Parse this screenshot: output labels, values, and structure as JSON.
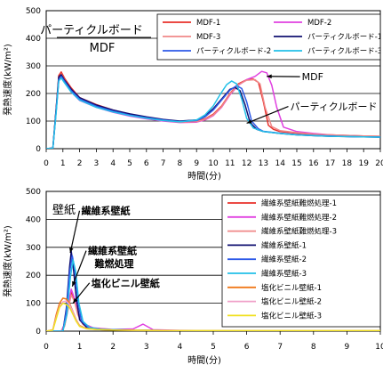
{
  "chart_data": [
    {
      "type": "line",
      "title": "パーティクルボード",
      "subtitle": "MDF",
      "xlabel": "時間(分)",
      "ylabel": "発熱速度(kW/m²)",
      "xlim": [
        0,
        20
      ],
      "ylim": [
        0,
        500
      ],
      "xticks": [
        "0",
        "1",
        "2",
        "3",
        "4",
        "5",
        "6",
        "7",
        "8",
        "9",
        "10",
        "11",
        "12",
        "13",
        "14",
        "15",
        "16",
        "17",
        "18",
        "19",
        "20"
      ],
      "yticks": [
        "0",
        "100",
        "200",
        "300",
        "400",
        "500"
      ],
      "grid": "horizontal",
      "legend_position": "top-right",
      "annotations": [
        {
          "text": "MDF",
          "x": 15.3,
          "y": 248,
          "arrow_to": [
            13.2,
            262
          ]
        },
        {
          "text": "パーティクルボード",
          "x": 14.6,
          "y": 140,
          "arrow_to": [
            12.0,
            92
          ]
        }
      ],
      "series": [
        {
          "name": "MDF-1",
          "color": "#e8302a",
          "x": [
            0,
            0.4,
            0.6,
            0.75,
            0.9,
            1.1,
            1.5,
            2,
            3,
            4,
            5,
            6,
            7,
            8,
            9,
            9.5,
            10,
            10.5,
            11,
            11.5,
            12,
            12.4,
            12.7,
            13,
            13.3,
            13.6,
            14,
            15,
            16,
            17,
            18,
            19,
            20
          ],
          "y": [
            0,
            2,
            150,
            265,
            278,
            255,
            220,
            185,
            160,
            140,
            125,
            113,
            103,
            98,
            100,
            108,
            125,
            155,
            200,
            235,
            250,
            252,
            240,
            170,
            85,
            70,
            62,
            56,
            52,
            50,
            48,
            46,
            45
          ]
        },
        {
          "name": "MDF-2",
          "color": "#e040e0",
          "x": [
            0,
            0.4,
            0.6,
            0.75,
            0.9,
            1.1,
            1.5,
            2,
            3,
            4,
            5,
            6,
            7,
            8,
            9,
            9.5,
            10,
            10.5,
            11,
            11.5,
            12,
            12.5,
            12.9,
            13.2,
            13.5,
            13.8,
            14.2,
            15,
            16,
            17,
            18,
            19,
            20
          ],
          "y": [
            0,
            2,
            140,
            245,
            262,
            242,
            205,
            175,
            150,
            132,
            118,
            108,
            100,
            95,
            96,
            104,
            120,
            150,
            195,
            230,
            250,
            262,
            280,
            275,
            230,
            150,
            78,
            62,
            55,
            50,
            47,
            45,
            44
          ]
        },
        {
          "name": "MDF-3",
          "color": "#f08888",
          "x": [
            0,
            0.4,
            0.6,
            0.75,
            0.9,
            1.1,
            1.5,
            2,
            3,
            4,
            5,
            6,
            7,
            8,
            9,
            9.5,
            10,
            10.5,
            11,
            11.5,
            12,
            12.5,
            12.8,
            13.1,
            13.5,
            14,
            15,
            16,
            17,
            18,
            19,
            20
          ],
          "y": [
            0,
            2,
            145,
            255,
            270,
            250,
            212,
            180,
            155,
            137,
            122,
            110,
            102,
            96,
            98,
            106,
            122,
            152,
            198,
            232,
            248,
            250,
            235,
            150,
            80,
            65,
            58,
            53,
            50,
            48,
            46,
            45
          ]
        },
        {
          "name": "パーティクルボード-1",
          "color": "#101070",
          "x": [
            0,
            0.4,
            0.6,
            0.75,
            0.9,
            1.1,
            1.5,
            2,
            3,
            4,
            5,
            6,
            7,
            8,
            9,
            9.5,
            10,
            10.5,
            11,
            11.3,
            11.6,
            11.9,
            12.2,
            12.6,
            13,
            14,
            15,
            16,
            17,
            18,
            19,
            20
          ],
          "y": [
            0,
            2,
            150,
            260,
            268,
            248,
            215,
            185,
            158,
            140,
            126,
            115,
            106,
            100,
            104,
            118,
            145,
            180,
            215,
            222,
            210,
            160,
            95,
            70,
            62,
            55,
            50,
            47,
            45,
            44,
            43,
            42
          ]
        },
        {
          "name": "パーティクルボード-2",
          "color": "#2e5ae8",
          "x": [
            0,
            0.4,
            0.6,
            0.75,
            0.9,
            1.1,
            1.5,
            2,
            3,
            4,
            5,
            6,
            7,
            8,
            9,
            9.5,
            10,
            10.5,
            11,
            11.4,
            11.7,
            12,
            12.3,
            12.7,
            13,
            14,
            15,
            16,
            17,
            18,
            19,
            20
          ],
          "y": [
            0,
            2,
            140,
            250,
            262,
            244,
            210,
            180,
            154,
            136,
            122,
            112,
            104,
            98,
            102,
            115,
            140,
            176,
            212,
            228,
            218,
            170,
            100,
            72,
            63,
            56,
            51,
            48,
            46,
            44,
            43,
            42
          ]
        },
        {
          "name": "パーティクルボード-3",
          "color": "#22c0e8",
          "x": [
            0,
            0.4,
            0.6,
            0.75,
            0.9,
            1.1,
            1.5,
            2,
            3,
            4,
            5,
            6,
            7,
            8,
            9,
            9.5,
            10,
            10.4,
            10.8,
            11.1,
            11.4,
            11.7,
            12,
            12.4,
            13,
            14,
            15,
            16,
            17,
            18,
            19,
            20
          ],
          "y": [
            0,
            2,
            135,
            245,
            256,
            238,
            205,
            176,
            150,
            133,
            120,
            110,
            102,
            97,
            104,
            122,
            155,
            195,
            232,
            245,
            235,
            180,
            110,
            75,
            62,
            55,
            50,
            47,
            45,
            44,
            43,
            42
          ]
        }
      ]
    },
    {
      "type": "line",
      "title": "壁紙",
      "xlabel": "時間(分)",
      "ylabel": "発熱速度(kW/m²)",
      "xlim": [
        0,
        10
      ],
      "ylim": [
        0,
        500
      ],
      "xticks": [
        "0",
        "1",
        "2",
        "3",
        "4",
        "5",
        "6",
        "7",
        "8",
        "9",
        "10"
      ],
      "yticks": [
        "0",
        "100",
        "200",
        "300",
        "400",
        "500"
      ],
      "grid": "horizontal",
      "legend_position": "top-right",
      "annotations": [
        {
          "text": "繊維系壁紙",
          "x": 1.05,
          "y": 418,
          "arrow_to": [
            0.72,
            280
          ]
        },
        {
          "text": "繊維系壁紙",
          "x": 1.25,
          "y": 275,
          "arrow_to": [
            0.78,
            160
          ]
        },
        {
          "text": "難燃処理",
          "x": 1.45,
          "y": 230
        },
        {
          "text": "塩化ビニル壁紙",
          "x": 1.35,
          "y": 160,
          "arrow_to": [
            0.8,
            100
          ]
        }
      ],
      "series": [
        {
          "name": "繊維系壁紙難燃処理-1",
          "color": "#e8302a",
          "x": [
            0,
            0.45,
            0.55,
            0.65,
            0.75,
            0.85,
            0.95,
            1.1,
            1.4,
            2,
            3,
            4,
            5,
            6,
            7,
            8,
            9,
            10
          ],
          "y": [
            0,
            0,
            20,
            80,
            140,
            110,
            60,
            25,
            10,
            5,
            3,
            2,
            2,
            2,
            2,
            2,
            2,
            2
          ]
        },
        {
          "name": "繊維系壁紙難燃処理-2",
          "color": "#e040e0",
          "x": [
            0,
            0.45,
            0.55,
            0.65,
            0.75,
            0.85,
            0.95,
            1.1,
            1.4,
            2,
            2.6,
            2.9,
            3.2,
            4,
            5,
            6,
            7,
            8,
            9,
            10
          ],
          "y": [
            0,
            0,
            25,
            90,
            150,
            115,
            65,
            28,
            12,
            6,
            8,
            25,
            5,
            3,
            2,
            2,
            2,
            2,
            2,
            2
          ]
        },
        {
          "name": "繊維系壁紙難燃処理-3",
          "color": "#f08888",
          "x": [
            0,
            0.45,
            0.55,
            0.65,
            0.75,
            0.85,
            0.95,
            1.1,
            1.4,
            2,
            3,
            4,
            5,
            6,
            7,
            8,
            9,
            10
          ],
          "y": [
            0,
            0,
            18,
            75,
            130,
            105,
            58,
            24,
            10,
            5,
            3,
            2,
            2,
            2,
            2,
            2,
            2,
            2
          ]
        },
        {
          "name": "繊維系壁紙-1",
          "color": "#101070",
          "x": [
            0,
            0.5,
            0.6,
            0.7,
            0.75,
            0.8,
            0.9,
            1.0,
            1.2,
            1.5,
            2,
            3,
            4,
            5,
            6,
            7,
            8,
            9,
            10
          ],
          "y": [
            0,
            0,
            80,
            230,
            285,
            240,
            120,
            40,
            15,
            8,
            5,
            3,
            2,
            2,
            2,
            2,
            2,
            2,
            2
          ]
        },
        {
          "name": "繊維系壁紙-2",
          "color": "#2e5ae8",
          "x": [
            0,
            0.5,
            0.6,
            0.7,
            0.78,
            0.85,
            0.95,
            1.05,
            1.25,
            1.6,
            2,
            3,
            4,
            5,
            6,
            7,
            8,
            9,
            10
          ],
          "y": [
            0,
            0,
            70,
            210,
            270,
            225,
            110,
            38,
            14,
            7,
            5,
            3,
            2,
            2,
            2,
            2,
            2,
            2,
            2
          ]
        },
        {
          "name": "繊維系壁紙-3",
          "color": "#22c0e8",
          "x": [
            0,
            0.5,
            0.62,
            0.72,
            0.8,
            0.88,
            0.98,
            1.1,
            1.3,
            1.6,
            2,
            3,
            4,
            5,
            6,
            7,
            8,
            9,
            10
          ],
          "y": [
            0,
            0,
            60,
            190,
            255,
            215,
            100,
            35,
            13,
            7,
            5,
            3,
            2,
            2,
            2,
            2,
            2,
            2,
            2
          ]
        },
        {
          "name": "塩化ビニル壁紙-1",
          "color": "#f07818",
          "x": [
            0,
            0.2,
            0.3,
            0.4,
            0.5,
            0.6,
            0.7,
            0.8,
            0.9,
            1.0,
            1.2,
            1.5,
            2,
            3,
            4,
            5,
            6,
            7,
            8,
            9,
            10
          ],
          "y": [
            0,
            5,
            60,
            100,
            118,
            115,
            100,
            70,
            40,
            20,
            10,
            6,
            4,
            3,
            2,
            2,
            2,
            2,
            2,
            2,
            2
          ]
        },
        {
          "name": "塩化ビニル壁紙-2",
          "color": "#f0a0c8",
          "x": [
            0,
            0.2,
            0.3,
            0.4,
            0.5,
            0.6,
            0.7,
            0.8,
            0.9,
            1.0,
            1.2,
            1.5,
            2,
            3,
            4,
            5,
            6,
            7,
            8,
            9,
            10
          ],
          "y": [
            0,
            4,
            50,
            88,
            105,
            108,
            95,
            68,
            38,
            18,
            9,
            6,
            4,
            3,
            2,
            2,
            2,
            2,
            2,
            2,
            2
          ]
        },
        {
          "name": "塩化ビニル壁紙-3",
          "color": "#f0e020",
          "x": [
            0,
            0.2,
            0.3,
            0.4,
            0.5,
            0.6,
            0.7,
            0.8,
            0.9,
            1.0,
            1.2,
            1.5,
            2,
            3,
            4,
            5,
            6,
            7,
            8,
            9,
            10
          ],
          "y": [
            0,
            4,
            45,
            85,
            100,
            96,
            85,
            60,
            35,
            17,
            9,
            6,
            4,
            3,
            2,
            2,
            2,
            2,
            2,
            2,
            2
          ]
        }
      ]
    }
  ]
}
